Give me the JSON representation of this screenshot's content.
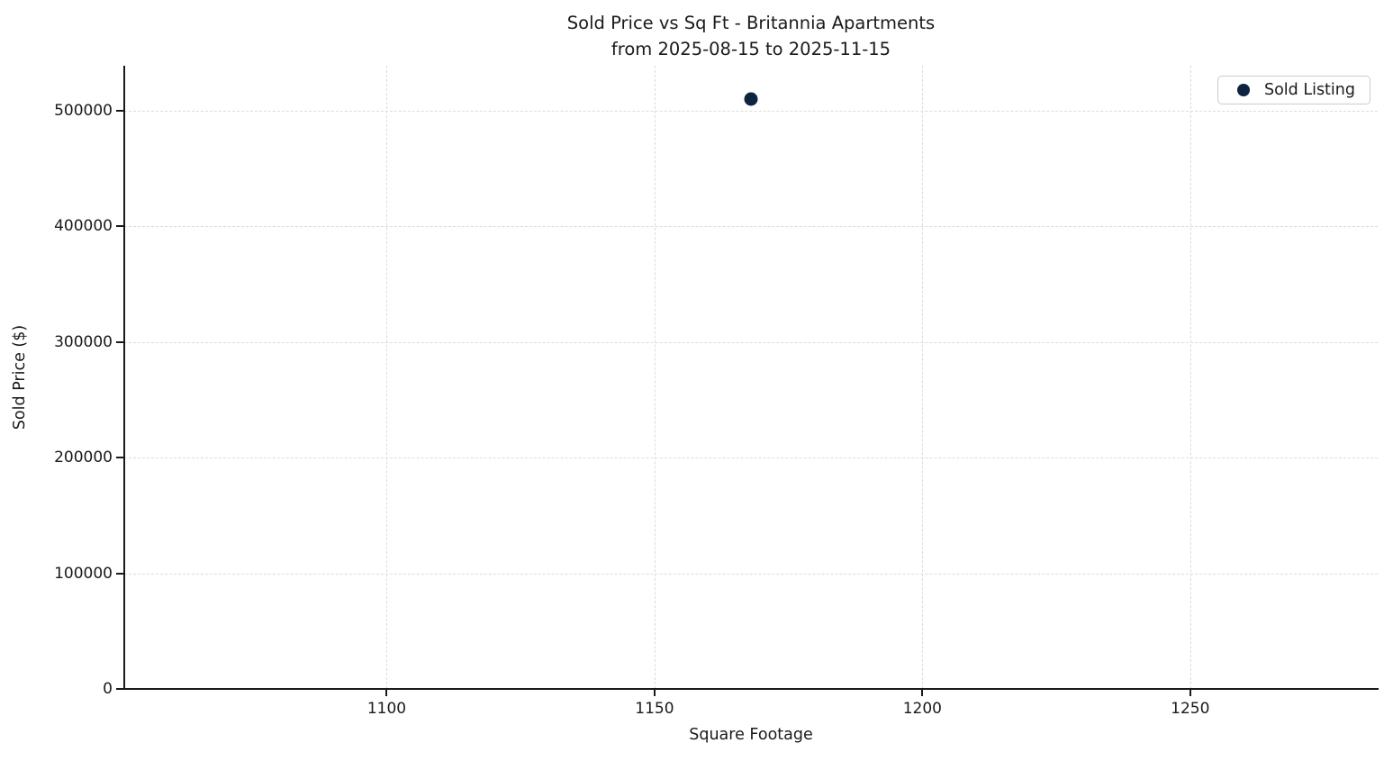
{
  "title": {
    "line1": "Sold Price vs Sq Ft - Britannia Apartments",
    "line2": "from 2025-08-15 to 2025-11-15"
  },
  "axes": {
    "xlabel": "Square Footage",
    "ylabel": "Sold Price ($)"
  },
  "legend": {
    "position": "upper right",
    "items": [
      {
        "label": "Sold Listing",
        "color": "#0d2340"
      }
    ]
  },
  "colors": {
    "marker": "#0d2340",
    "grid": "#dcdcdc",
    "spine": "#1a1a1a",
    "text": "#1a1a1a",
    "background": "#ffffff"
  },
  "chart_data": {
    "type": "scatter",
    "title": "Sold Price vs Sq Ft - Britannia Apartments\nfrom 2025-08-15 to 2025-11-15",
    "xlabel": "Square Footage",
    "ylabel": "Sold Price ($)",
    "series": [
      {
        "name": "Sold Listing",
        "color": "#0d2340",
        "x": [
          1168
        ],
        "y": [
          510000
        ]
      }
    ],
    "xlim": [
      1051,
      1285
    ],
    "ylim": [
      0,
      539000
    ],
    "x_ticks": [
      1100,
      1150,
      1200,
      1250
    ],
    "y_ticks": [
      0,
      100000,
      200000,
      300000,
      400000,
      500000
    ],
    "grid": true,
    "grid_style": "dashed",
    "legend_position": "upper right"
  }
}
